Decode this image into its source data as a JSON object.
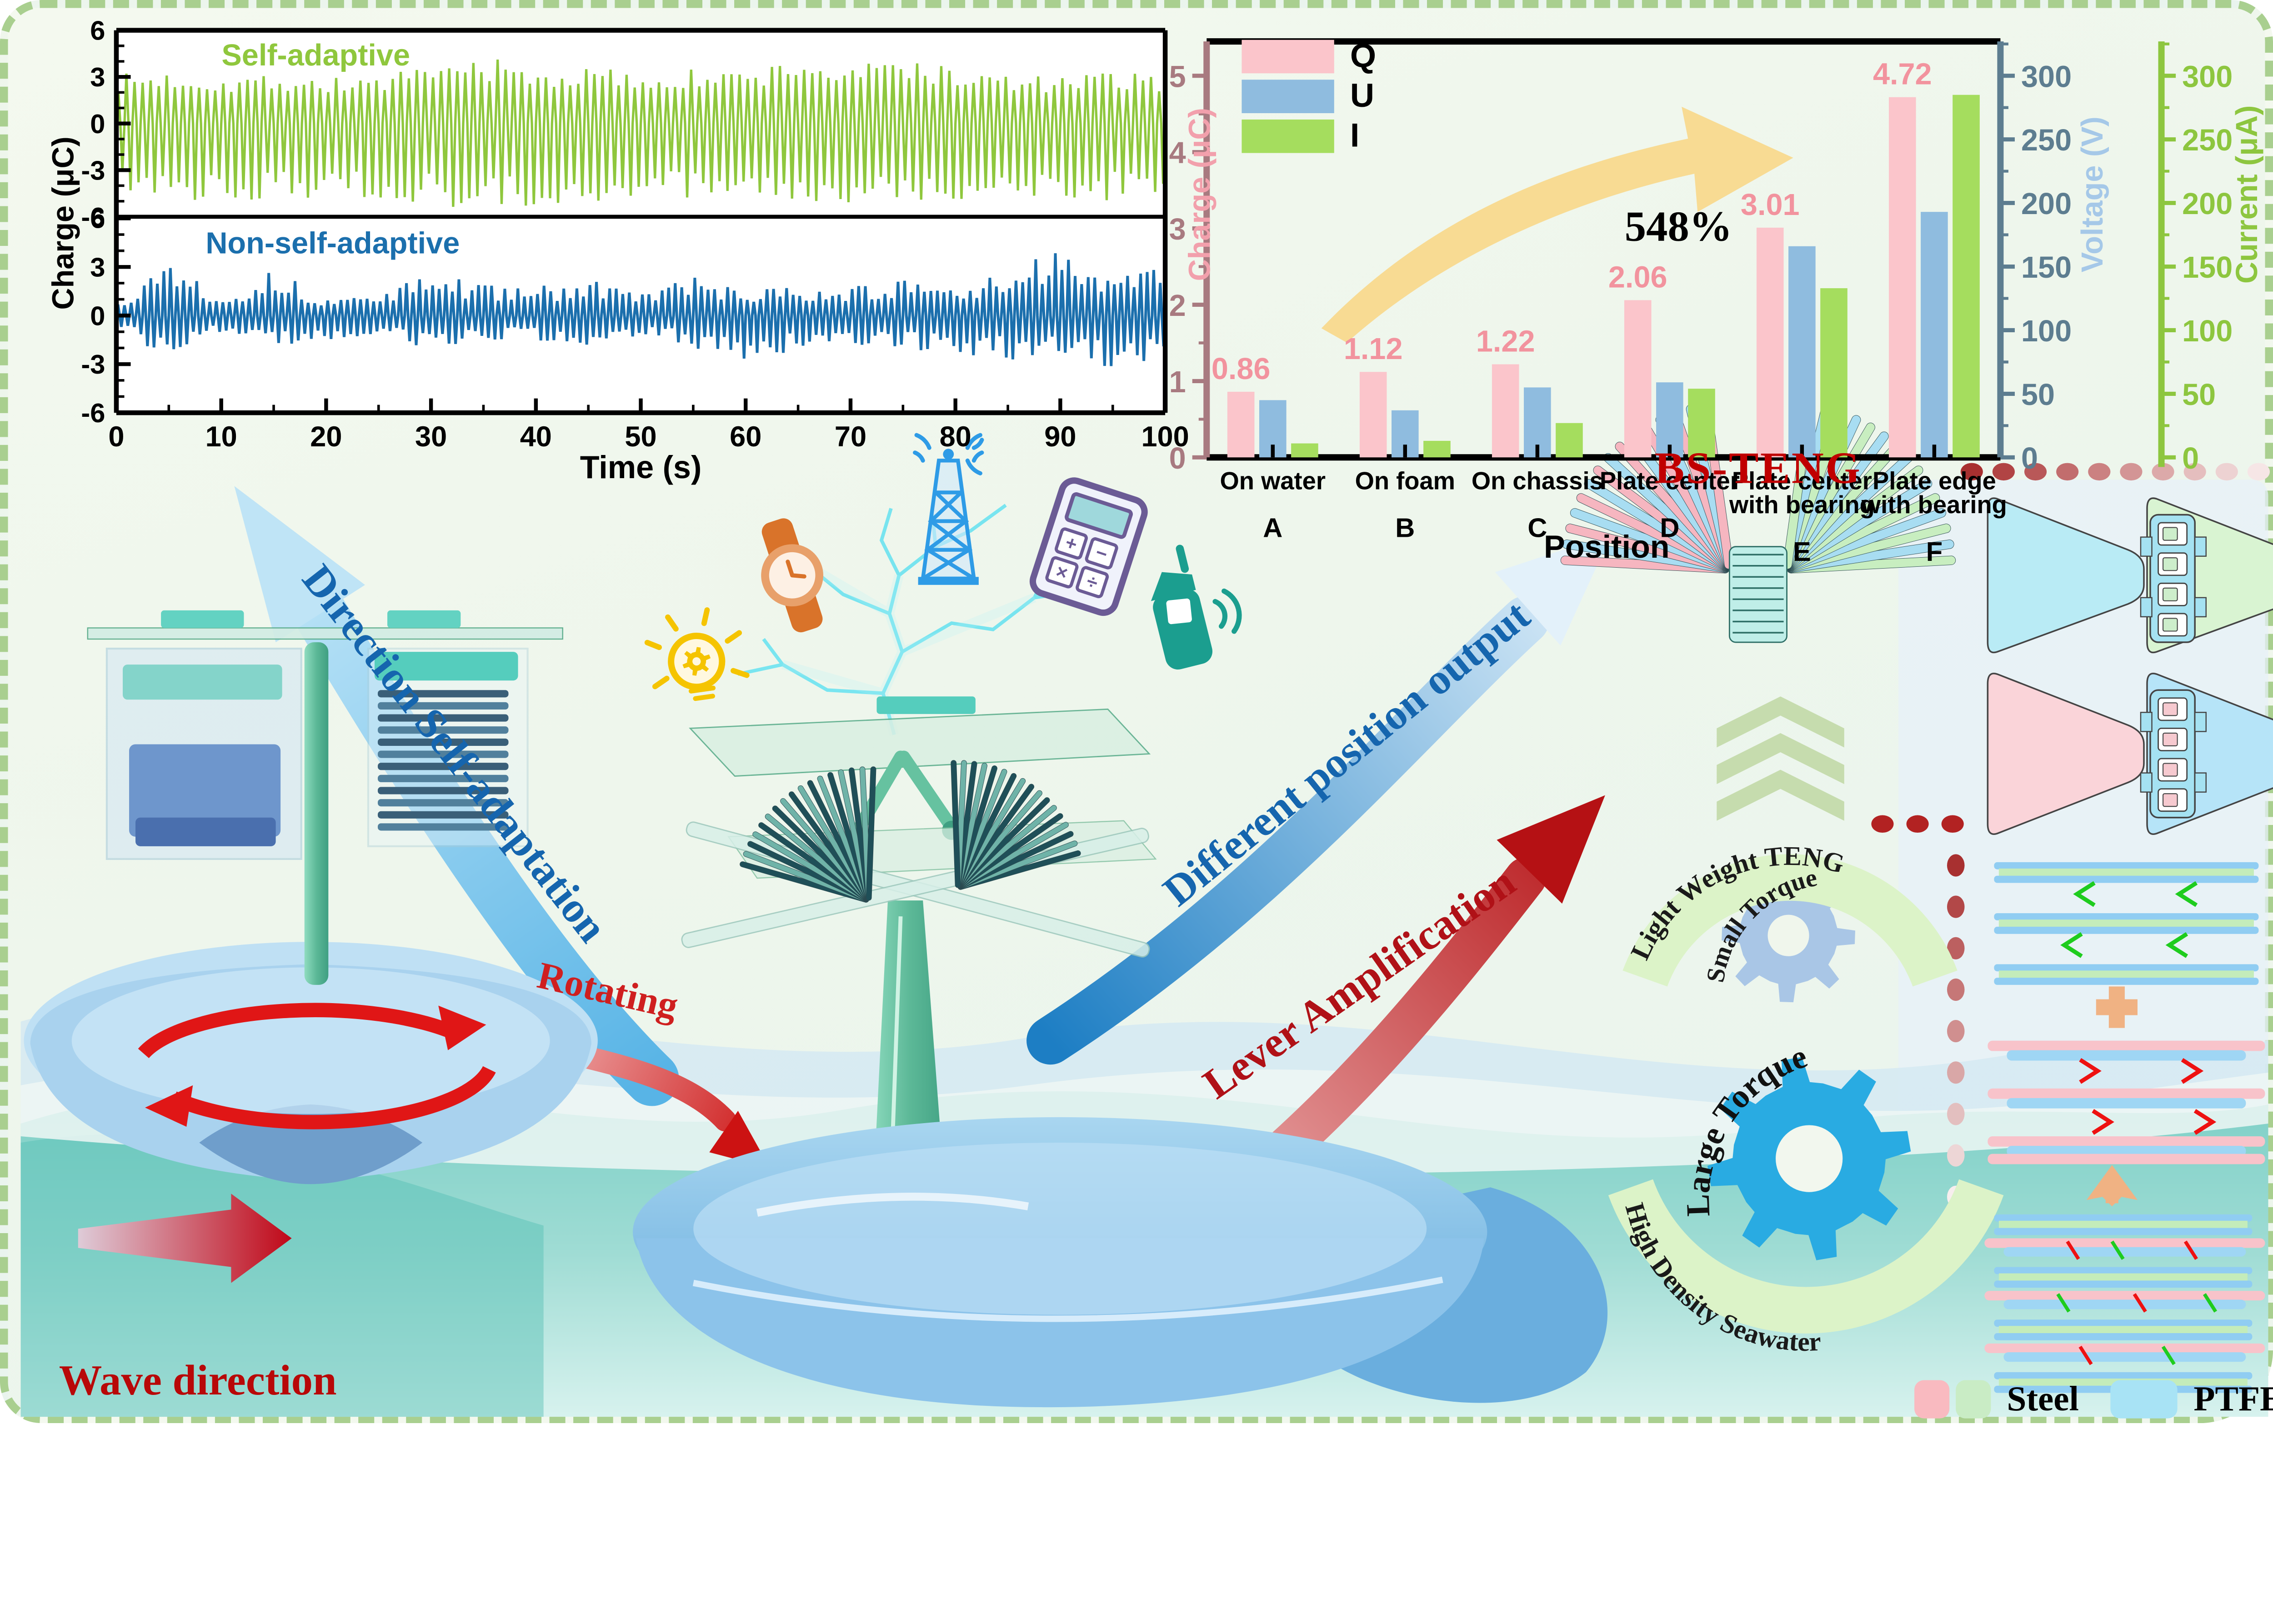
{
  "colors": {
    "border": "#a9cf8f",
    "bg": "#f1f7ec",
    "water_teal": "#7ccfc6",
    "water_light": "#d7f2ee",
    "series_green": "#8fc73d",
    "series_blue": "#1b6fad",
    "bar_q": "#fbc5cb",
    "bar_u": "#8fbcdf",
    "bar_i": "#a5dd5e",
    "q_label": "#f2939e",
    "charge_axis": "#a87a80",
    "charge_label": "#f2a0ac",
    "voltage_tick": "#5d7d90",
    "voltage_label": "#a5c8e8",
    "current_axis": "#8dc63f",
    "yellow_arrow": "#f8d98e",
    "blue_phrase": "#1565ae",
    "red_phrase": "#b01117",
    "bs_teng_red": "#c00000",
    "rotating_red": "#cf1f1f",
    "wave_red": "#b80808",
    "gear_small": "#a9c6e6",
    "gear_large": "#29abe2",
    "arc_band": "#dcf3c8",
    "chevron_green": "#c6dcae",
    "legend_pink": "#f9bac0",
    "legend_green": "#c9ecc5",
    "legend_blue": "#a8e3f5",
    "dot_red": "#a83030",
    "orange": "#f0b283"
  },
  "chart_data": [
    {
      "type": "line",
      "ylabel": "Charge (μC)",
      "xlabel": "Time (s)",
      "x_range": [
        0,
        100
      ],
      "x_ticks": [
        0,
        10,
        20,
        30,
        40,
        50,
        60,
        70,
        80,
        90,
        100
      ],
      "y_ticks": [
        6,
        3,
        0,
        -3,
        -6
      ],
      "ylim": [
        -6,
        6
      ],
      "grid": false,
      "panels": [
        {
          "label": "Self-adaptive",
          "color": "#8fc73d",
          "seed": 7,
          "cycles_per_s": 1.3,
          "envelope_t_step": 5,
          "pos_envelope": [
            3.2,
            3.4,
            3.1,
            3.3,
            3.0,
            3.2,
            3.6,
            4.5,
            3.4,
            3.7,
            3.3,
            3.5,
            3.4,
            4.4,
            3.6,
            4.6,
            3.5,
            3.2,
            3.0,
            3.4,
            3.2
          ],
          "neg_envelope": [
            -4.8,
            -5.0,
            -4.9,
            -5.0,
            -4.8,
            -4.9,
            -5.2,
            -5.7,
            -5.2,
            -5.0,
            -4.9,
            -5.0,
            -4.8,
            -5.0,
            -5.1,
            -5.0,
            -4.9,
            -4.8,
            -4.9,
            -5.0,
            -4.9
          ]
        },
        {
          "label": "Non-self-adaptive",
          "color": "#1b6fad",
          "seed": 13,
          "cycles_per_s": 1.6,
          "envelope_t_step": 5,
          "pos_envelope": [
            0.8,
            3.9,
            1.2,
            2.9,
            1.0,
            1.5,
            2.6,
            2.0,
            1.8,
            2.2,
            1.5,
            2.5,
            1.4,
            2.0,
            1.8,
            2.2,
            1.6,
            2.8,
            4.1,
            3.0,
            2.8
          ],
          "neg_envelope": [
            -0.9,
            -2.8,
            -1.0,
            -2.0,
            -1.5,
            -1.2,
            -2.2,
            -1.6,
            -1.5,
            -2.0,
            -1.2,
            -2.0,
            -3.2,
            -2.2,
            -1.8,
            -2.0,
            -2.5,
            -2.8,
            -2.6,
            -3.4,
            -2.6
          ]
        }
      ]
    },
    {
      "type": "bar",
      "xlabel": "Position",
      "annotation": "548%",
      "legend": [
        {
          "label": "Q",
          "color": "#fbc5cb"
        },
        {
          "label": "U",
          "color": "#8fbcdf"
        },
        {
          "label": "I",
          "color": "#a5dd5e"
        }
      ],
      "categories": [
        {
          "lines": [
            "On water"
          ],
          "letter": "A"
        },
        {
          "lines": [
            "On foam"
          ],
          "letter": "B"
        },
        {
          "lines": [
            "On chassis"
          ],
          "letter": "C"
        },
        {
          "lines": [
            "Plate center"
          ],
          "letter": "D"
        },
        {
          "lines": [
            "Plate center",
            "with bearing"
          ],
          "letter": "E"
        },
        {
          "lines": [
            "Plate edge",
            "with bearing"
          ],
          "letter": "F"
        }
      ],
      "series": [
        {
          "name": "Q",
          "axis": "charge",
          "unit": "μC",
          "values": [
            0.86,
            1.12,
            1.22,
            2.06,
            3.01,
            4.72
          ],
          "data_labels": [
            "0.86",
            "1.12",
            "1.22",
            "2.06",
            "3.01",
            "4.72"
          ]
        },
        {
          "name": "U",
          "axis": "voltage",
          "unit": "V",
          "values": [
            45,
            37,
            55,
            59,
            166,
            193
          ]
        },
        {
          "name": "I",
          "axis": "current",
          "unit": "μA",
          "values": [
            11,
            13,
            27,
            54,
            133,
            285
          ]
        }
      ],
      "axes": {
        "charge": {
          "label": "Charge (μC)",
          "ticks": [
            0,
            1,
            2,
            3,
            4,
            5
          ],
          "max": 5.45
        },
        "voltage": {
          "label": "Voltage (V)",
          "ticks": [
            0,
            50,
            100,
            150,
            200,
            250,
            300
          ],
          "max": 327
        },
        "current": {
          "label": "Current (μA)",
          "ticks": [
            0,
            50,
            100,
            150,
            200,
            250,
            300
          ],
          "max": 327
        }
      }
    }
  ],
  "phrases": {
    "direction_self_adaptation": "Direction Self-adaptation",
    "different_position_output": "Different position output",
    "lever_amplification": "Lever Amplification",
    "rotating": "Rotating",
    "wave_direction": "Wave direction",
    "bs_teng": "BS-TENG"
  },
  "gears": {
    "small": {
      "band": "Light Weight TENG",
      "text": "Small Torque"
    },
    "large": {
      "text": "Large Torque",
      "band": "High Density Seawater"
    }
  },
  "materials_legend": {
    "steel": "Steel",
    "ptfe": "PTFE"
  },
  "icons": {
    "names": [
      "wristwatch-icon",
      "bulb-gear-icon",
      "radio-tower-icon",
      "calculator-icon",
      "walkie-talkie-icon",
      "lightning-icon"
    ],
    "calculator_keys": [
      "+",
      "−",
      "×",
      "÷"
    ]
  }
}
